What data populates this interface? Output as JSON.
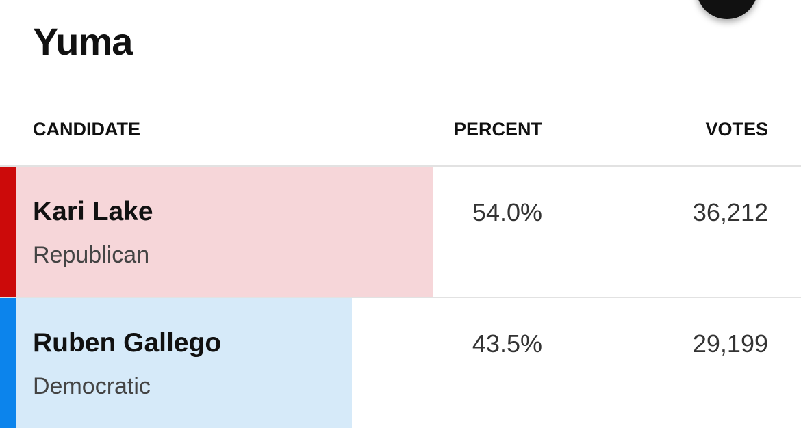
{
  "header": {
    "title": "Yuma"
  },
  "table": {
    "columns": [
      "CANDIDATE",
      "PERCENT",
      "VOTES"
    ],
    "rows": [
      {
        "name": "Kari Lake",
        "party": "Republican",
        "percent": {
          "value": 54.0,
          "label": "54.0%"
        },
        "votes": "36,212",
        "color": "#cc0a0a",
        "fill": "#f6d6d9"
      },
      {
        "name": "Ruben Gallego",
        "party": "Democratic",
        "percent": {
          "value": 43.5,
          "label": "43.5%"
        },
        "votes": "29,199",
        "color": "#0c84ec",
        "fill": "#d6eaf9"
      }
    ]
  }
}
